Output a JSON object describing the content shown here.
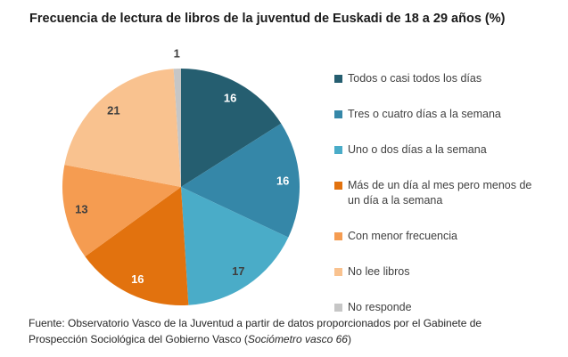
{
  "title": "Frecuencia de lectura de libros de la juventud de Euskadi de 18 a 29 años (%)",
  "chart_data": {
    "type": "pie",
    "title": "Frecuencia de lectura de libros de la juventud de Euskadi de 18 a 29 años (%)",
    "labels": [
      "Todos o casi todos los días",
      "Tres o cuatro días a la semana",
      "Uno o dos días a la semana",
      "Más de un día al mes pero menos de un día a la semana",
      "Con menor frecuencia",
      "No lee libros",
      "No responde"
    ],
    "values": [
      16,
      16,
      17,
      16,
      13,
      21,
      1
    ],
    "unit": "%",
    "colors": [
      "#255E70",
      "#3587A8",
      "#4AACC8",
      "#E2720E",
      "#F59C51",
      "#F9C28F",
      "#C6C6C6"
    ],
    "value_label_colors": [
      "#ffffff",
      "#ffffff",
      "#3f3f3f",
      "#ffffff",
      "#3f3f3f",
      "#3f3f3f",
      "#3f3f3f"
    ],
    "value_label_placement": [
      "inside",
      "inside",
      "inside",
      "inside",
      "inside",
      "inside",
      "outside"
    ],
    "start_angle_deg": 0,
    "direction": "clockwise",
    "legend_position": "right"
  },
  "legend": {
    "items": [
      {
        "label": "Todos o casi todos los días",
        "color": "#255E70"
      },
      {
        "label": "Tres o cuatro días a la semana",
        "color": "#3587A8"
      },
      {
        "label": "Uno o dos días a la semana",
        "color": "#4AACC8"
      },
      {
        "label": "Más de un día al mes pero menos de\nun día a la semana",
        "color": "#E2720E"
      },
      {
        "label": "Con menor frecuencia",
        "color": "#F59C51"
      },
      {
        "label": "No lee libros",
        "color": "#F9C28F"
      },
      {
        "label": "No responde",
        "color": "#C6C6C6"
      }
    ]
  },
  "footer": {
    "text_before": "Fuente: Observatorio Vasco de la Juventud a partir de datos proporcionados por el Gabinete de\nProspección Sociológica del Gobierno Vasco (",
    "italic": "Sociómetro vasco 66",
    "text_after": ")"
  }
}
